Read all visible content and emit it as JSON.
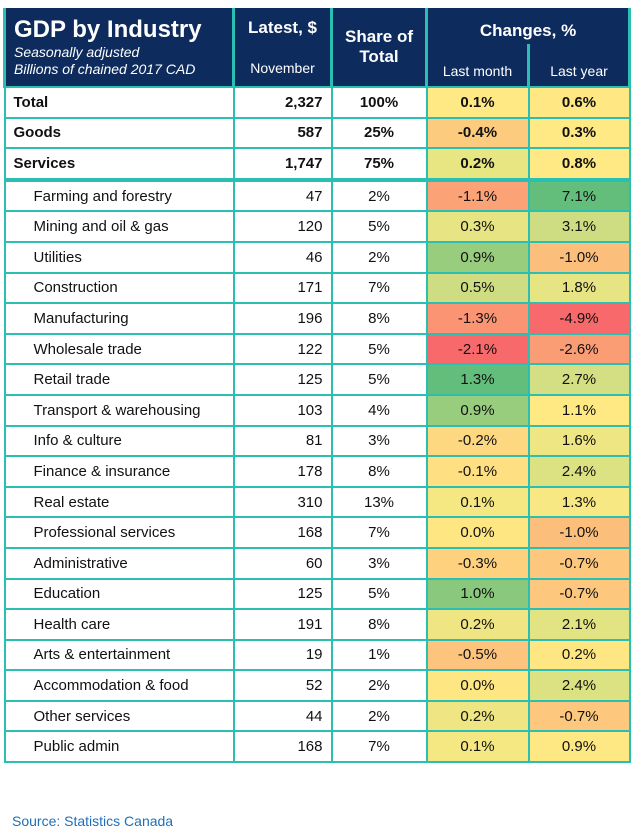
{
  "title": "GDP by Industry",
  "subtitle1": "Seasonally adjusted",
  "subtitle2": "Billions of chained 2017 CAD",
  "source": "Source: Statistics Canada",
  "chart_data": {
    "type": "table",
    "headers": {
      "latest": "Latest, $",
      "latest_sub": "November",
      "share": "Share of Total",
      "changes": "Changes, %",
      "last_month": "Last month",
      "last_year": "Last year"
    },
    "rows": [
      {
        "name": "Total",
        "latest": "2,327",
        "share": "100%",
        "m": "0.1%",
        "y": "0.6%",
        "mc": "#FFE984",
        "yc": "#FFE784",
        "bold": true
      },
      {
        "name": "Goods",
        "latest": "587",
        "share": "25%",
        "m": "-0.4%",
        "y": "0.3%",
        "mc": "#FDCB7E",
        "yc": "#FFE984",
        "bold": true
      },
      {
        "name": "Services",
        "latest": "1,747",
        "share": "75%",
        "m": "0.2%",
        "y": "0.8%",
        "mc": "#E8E583",
        "yc": "#FFE984",
        "bold": true
      },
      {
        "name": "Farming and forestry",
        "latest": "47",
        "share": "2%",
        "m": "-1.1%",
        "y": "7.1%",
        "mc": "#FBA276",
        "yc": "#63BE7B"
      },
      {
        "name": "Mining and oil & gas",
        "latest": "120",
        "share": "5%",
        "m": "0.3%",
        "y": "3.1%",
        "mc": "#E6E483",
        "yc": "#CFDD82"
      },
      {
        "name": "Utilities",
        "latest": "46",
        "share": "2%",
        "m": "0.9%",
        "y": "-1.0%",
        "mc": "#98CD7E",
        "yc": "#FCBE7B"
      },
      {
        "name": "Construction",
        "latest": "171",
        "share": "7%",
        "m": "0.5%",
        "y": "1.8%",
        "mc": "#CFDD82",
        "yc": "#E7E483"
      },
      {
        "name": "Manufacturing",
        "latest": "196",
        "share": "8%",
        "m": "-1.3%",
        "y": "-4.9%",
        "mc": "#FA9473",
        "yc": "#F8696B"
      },
      {
        "name": "Wholesale trade",
        "latest": "122",
        "share": "5%",
        "m": "-2.1%",
        "y": "-2.6%",
        "mc": "#F8696B",
        "yc": "#FA9D75"
      },
      {
        "name": "Retail trade",
        "latest": "125",
        "share": "5%",
        "m": "1.3%",
        "y": "2.7%",
        "mc": "#63BE7B",
        "yc": "#D3DF82"
      },
      {
        "name": "Transport & warehousing",
        "latest": "103",
        "share": "4%",
        "m": "0.9%",
        "y": "1.1%",
        "mc": "#98CD7E",
        "yc": "#FEE983"
      },
      {
        "name": "Info & culture",
        "latest": "81",
        "share": "3%",
        "m": "-0.2%",
        "y": "1.6%",
        "mc": "#FED880",
        "yc": "#EDE683"
      },
      {
        "name": "Finance & insurance",
        "latest": "178",
        "share": "8%",
        "m": "-0.1%",
        "y": "2.4%",
        "mc": "#FEE082",
        "yc": "#DCE182"
      },
      {
        "name": "Real estate",
        "latest": "310",
        "share": "13%",
        "m": "0.1%",
        "y": "1.3%",
        "mc": "#F5E883",
        "yc": "#F7E883"
      },
      {
        "name": "Professional services",
        "latest": "168",
        "share": "7%",
        "m": "0.0%",
        "y": "-1.0%",
        "mc": "#FEE783",
        "yc": "#FCBE7B"
      },
      {
        "name": "Administrative",
        "latest": "60",
        "share": "3%",
        "m": "-0.3%",
        "y": "-0.7%",
        "mc": "#FED17F",
        "yc": "#FDC87D"
      },
      {
        "name": "Education",
        "latest": "125",
        "share": "5%",
        "m": "1.0%",
        "y": "-0.7%",
        "mc": "#8AC97D",
        "yc": "#FDC87D"
      },
      {
        "name": "Health care",
        "latest": "191",
        "share": "8%",
        "m": "0.2%",
        "y": "2.1%",
        "mc": "#EFE683",
        "yc": "#E2E383"
      },
      {
        "name": "Arts & entertainment",
        "latest": "19",
        "share": "1%",
        "m": "-0.5%",
        "y": "0.2%",
        "mc": "#FDC47D",
        "yc": "#FEE783"
      },
      {
        "name": "Accommodation & food",
        "latest": "52",
        "share": "2%",
        "m": "0.0%",
        "y": "2.4%",
        "mc": "#FEE783",
        "yc": "#DCE182"
      },
      {
        "name": "Other services",
        "latest": "44",
        "share": "2%",
        "m": "0.2%",
        "y": "-0.7%",
        "mc": "#EFE683",
        "yc": "#FDC87D"
      },
      {
        "name": "Public admin",
        "latest": "168",
        "share": "7%",
        "m": "0.1%",
        "y": "0.9%",
        "mc": "#F5E883",
        "yc": "#FEE883"
      }
    ]
  }
}
